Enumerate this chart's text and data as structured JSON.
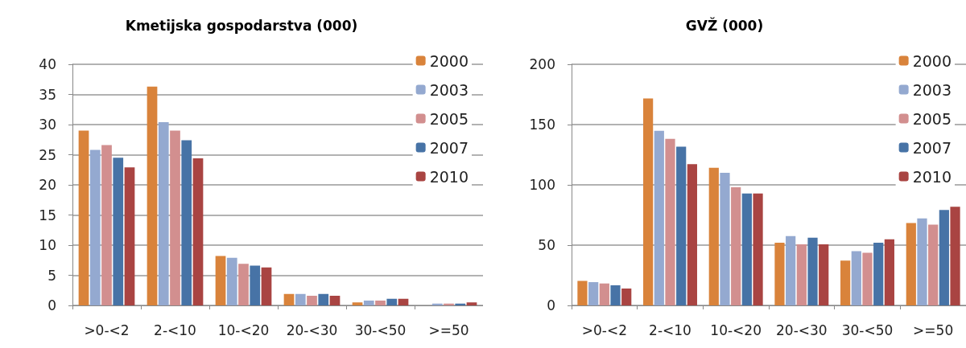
{
  "chart_data": [
    {
      "type": "bar",
      "title": "Kmetijska gospodarstva (000)",
      "categories": [
        ">0-<2",
        "2-<10",
        "10-<20",
        "20-<30",
        "30-<50",
        ">=50"
      ],
      "series": [
        {
          "name": "2000",
          "color": "#d9833b",
          "values": [
            29,
            36.3,
            8.2,
            1.9,
            0.5,
            0
          ]
        },
        {
          "name": "2003",
          "color": "#94a9d0",
          "values": [
            25.8,
            30.4,
            7.9,
            1.9,
            0.8,
            0.3
          ]
        },
        {
          "name": "2005",
          "color": "#d28f8f",
          "values": [
            26.6,
            29,
            6.9,
            1.6,
            0.8,
            0.3
          ]
        },
        {
          "name": "2007",
          "color": "#4773a6",
          "values": [
            24.5,
            27.4,
            6.6,
            1.9,
            1.1,
            0.3
          ]
        },
        {
          "name": "2010",
          "color": "#a94442",
          "values": [
            22.9,
            24.4,
            6.3,
            1.6,
            1.1,
            0.5
          ]
        }
      ],
      "ylim": [
        0,
        40
      ],
      "yticks": [
        0,
        5,
        10,
        15,
        20,
        25,
        30,
        35,
        40
      ],
      "grid": "y",
      "legend": "top right"
    },
    {
      "type": "bar",
      "title": "GVŽ (000)",
      "categories": [
        ">0-<2",
        "2-<10",
        "10-<20",
        "20-<30",
        "30-<50",
        ">=50"
      ],
      "series": [
        {
          "name": "2000",
          "color": "#d9833b",
          "values": [
            20.4,
            171.6,
            114.2,
            52,
            37.1,
            68.3
          ]
        },
        {
          "name": "2003",
          "color": "#94a9d0",
          "values": [
            19.3,
            144.9,
            110,
            57.5,
            45,
            72.2
          ]
        },
        {
          "name": "2005",
          "color": "#d28f8f",
          "values": [
            18.2,
            138.2,
            98,
            50.7,
            43.7,
            67
          ]
        },
        {
          "name": "2007",
          "color": "#4773a6",
          "values": [
            16.7,
            131.6,
            92.8,
            56.1,
            52,
            79.2
          ]
        },
        {
          "name": "2010",
          "color": "#a94442",
          "values": [
            14,
            117.1,
            92.8,
            50.7,
            54.8,
            81.9
          ]
        }
      ],
      "ylim": [
        0,
        200
      ],
      "yticks": [
        0,
        50,
        100,
        150,
        200
      ],
      "grid": "y",
      "legend": "top right"
    }
  ]
}
